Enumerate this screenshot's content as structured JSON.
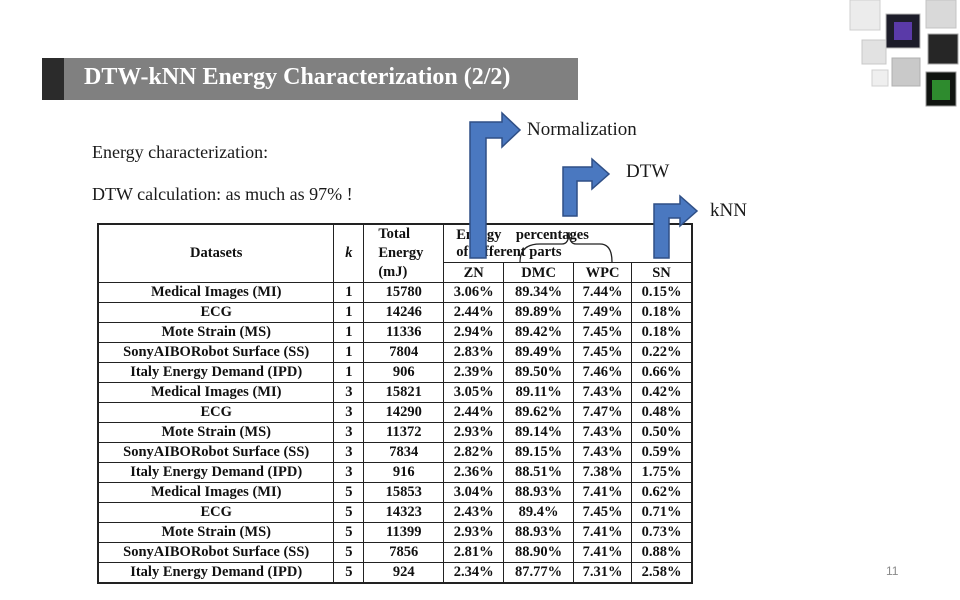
{
  "title": "DTW-kNN Energy Characterization (2/2)",
  "lines": [
    "Energy characterization:",
    "DTW calculation: as much as 97% !"
  ],
  "annotations": {
    "normalization": "Normalization",
    "dtw": "DTW",
    "knn": "kNN"
  },
  "table": {
    "headers": {
      "datasets": "Datasets",
      "k": "k",
      "total_line1": "Total",
      "total_line2": "Energy",
      "total_line3": "(mJ)",
      "group_line1": "Energy    percentages",
      "group_line2": "of different parts",
      "zn": "ZN",
      "dmc": "DMC",
      "wpc": "WPC",
      "sn": "SN"
    },
    "rows": [
      {
        "dataset": "Medical Images (MI)",
        "k": "1",
        "energy": "15780",
        "zn": "3.06%",
        "dmc": "89.34%",
        "wpc": "7.44%",
        "sn": "0.15%"
      },
      {
        "dataset": "ECG",
        "k": "1",
        "energy": "14246",
        "zn": "2.44%",
        "dmc": "89.89%",
        "wpc": "7.49%",
        "sn": "0.18%"
      },
      {
        "dataset": "Mote Strain (MS)",
        "k": "1",
        "energy": "11336",
        "zn": "2.94%",
        "dmc": "89.42%",
        "wpc": "7.45%",
        "sn": "0.18%"
      },
      {
        "dataset": "SonyAIBORobot Surface (SS)",
        "k": "1",
        "energy": "7804",
        "zn": "2.83%",
        "dmc": "89.49%",
        "wpc": "7.45%",
        "sn": "0.22%"
      },
      {
        "dataset": "Italy Energy Demand (IPD)",
        "k": "1",
        "energy": "906",
        "zn": "2.39%",
        "dmc": "89.50%",
        "wpc": "7.46%",
        "sn": "0.66%"
      },
      {
        "dataset": "Medical Images (MI)",
        "k": "3",
        "energy": "15821",
        "zn": "3.05%",
        "dmc": "89.11%",
        "wpc": "7.43%",
        "sn": "0.42%"
      },
      {
        "dataset": "ECG",
        "k": "3",
        "energy": "14290",
        "zn": "2.44%",
        "dmc": "89.62%",
        "wpc": "7.47%",
        "sn": "0.48%"
      },
      {
        "dataset": "Mote Strain (MS)",
        "k": "3",
        "energy": "11372",
        "zn": "2.93%",
        "dmc": "89.14%",
        "wpc": "7.43%",
        "sn": "0.50%"
      },
      {
        "dataset": "SonyAIBORobot Surface (SS)",
        "k": "3",
        "energy": "7834",
        "zn": "2.82%",
        "dmc": "89.15%",
        "wpc": "7.43%",
        "sn": "0.59%"
      },
      {
        "dataset": "Italy Energy Demand (IPD)",
        "k": "3",
        "energy": "916",
        "zn": "2.36%",
        "dmc": "88.51%",
        "wpc": "7.38%",
        "sn": "1.75%"
      },
      {
        "dataset": "Medical Images (MI)",
        "k": "5",
        "energy": "15853",
        "zn": "3.04%",
        "dmc": "88.93%",
        "wpc": "7.41%",
        "sn": "0.62%"
      },
      {
        "dataset": "ECG",
        "k": "5",
        "energy": "14323",
        "zn": "2.43%",
        "dmc": "89.4%",
        "wpc": "7.45%",
        "sn": "0.71%"
      },
      {
        "dataset": "Mote Strain (MS)",
        "k": "5",
        "energy": "11399",
        "zn": "2.93%",
        "dmc": "88.93%",
        "wpc": "7.41%",
        "sn": "0.73%"
      },
      {
        "dataset": "SonyAIBORobot Surface (SS)",
        "k": "5",
        "energy": "7856",
        "zn": "2.81%",
        "dmc": "88.90%",
        "wpc": "7.41%",
        "sn": "0.88%"
      },
      {
        "dataset": "Italy Energy Demand (IPD)",
        "k": "5",
        "energy": "924",
        "zn": "2.34%",
        "dmc": "87.77%",
        "wpc": "7.31%",
        "sn": "2.58%"
      }
    ]
  },
  "slide_number": "11",
  "colors": {
    "title_bar": "#808080",
    "title_accent": "#2b2b2b",
    "arrow_fill": "#4a78c0",
    "arrow_stroke": "#2f4f86"
  }
}
